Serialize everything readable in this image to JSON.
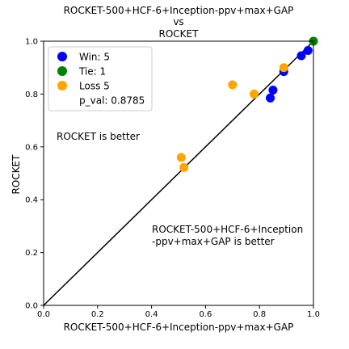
{
  "chart_data": {
    "type": "scatter",
    "title_lines": [
      "ROCKET-500+HCF-6+Inception-ppv+max+GAP",
      "vs",
      "ROCKET"
    ],
    "xlabel": "ROCKET-500+HCF-6+Inception-ppv+max+GAP",
    "ylabel": "ROCKET",
    "xlim": [
      0,
      1
    ],
    "ylim": [
      0,
      1
    ],
    "x_ticks": [
      0.0,
      0.2,
      0.4,
      0.6,
      0.8,
      1.0
    ],
    "y_ticks": [
      0.0,
      0.2,
      0.4,
      0.6,
      0.8,
      1.0
    ],
    "x_tick_labels": [
      "0.0",
      "0.2",
      "0.4",
      "0.6",
      "0.8",
      "1.0"
    ],
    "y_tick_labels": [
      "0.0",
      "0.2",
      "0.4",
      "0.6",
      "0.8",
      "1.0"
    ],
    "grid": false,
    "diagonal_line": true,
    "legend_position": "top-left",
    "legend": [
      "Win: 5",
      "Tie: 1",
      "Loss 5"
    ],
    "p_val_label": "p_val: 0.8785",
    "annotations": {
      "upper_left": "ROCKET is better",
      "lower_right_line1": "ROCKET-500+HCF-6+Inception",
      "lower_right_line2": "-ppv+max+GAP is better"
    },
    "series": [
      {
        "name": "Win: 5",
        "color": "#0000ff",
        "points": [
          [
            0.98,
            0.965
          ],
          [
            0.955,
            0.945
          ],
          [
            0.89,
            0.885
          ],
          [
            0.85,
            0.815
          ],
          [
            0.84,
            0.785
          ]
        ]
      },
      {
        "name": "Tie: 1",
        "color": "#008000",
        "points": [
          [
            1.0,
            1.0
          ]
        ]
      },
      {
        "name": "Loss 5",
        "color": "#ffa500",
        "points": [
          [
            0.89,
            0.9
          ],
          [
            0.7,
            0.835
          ],
          [
            0.78,
            0.8
          ],
          [
            0.51,
            0.56
          ],
          [
            0.52,
            0.522
          ]
        ]
      }
    ]
  }
}
